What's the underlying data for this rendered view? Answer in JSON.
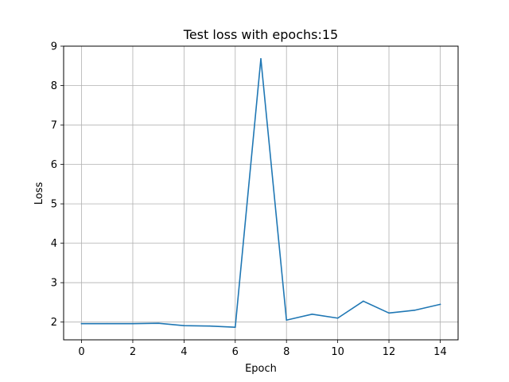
{
  "chart_data": {
    "type": "line",
    "title": "Test loss with epochs:15",
    "xlabel": "Epoch",
    "ylabel": "Loss",
    "xlim": [
      -0.7,
      14.7
    ],
    "ylim": [
      1.55,
      9.0
    ],
    "x_ticks": [
      0,
      2,
      4,
      6,
      8,
      10,
      12,
      14
    ],
    "y_ticks": [
      2,
      3,
      4,
      5,
      6,
      7,
      8,
      9
    ],
    "grid": true,
    "legend": "none",
    "series": [
      {
        "color": "#1f77b4",
        "x": [
          0,
          1,
          2,
          3,
          4,
          5,
          6,
          7,
          8,
          9,
          10,
          11,
          12,
          13,
          14
        ],
        "y": [
          1.96,
          1.96,
          1.96,
          1.97,
          1.91,
          1.9,
          1.87,
          8.68,
          2.05,
          2.2,
          2.1,
          2.53,
          2.23,
          2.3,
          2.45
        ]
      }
    ]
  }
}
